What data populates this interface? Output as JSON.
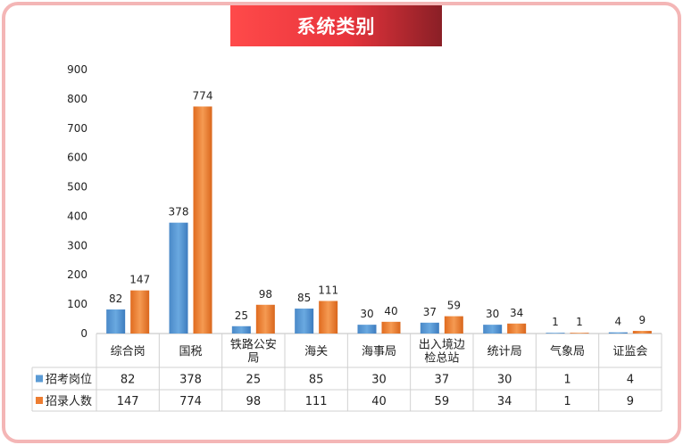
{
  "title": "系统类别",
  "chart_data": {
    "type": "bar",
    "title": "系统类别",
    "categories": [
      [
        "综合岗"
      ],
      [
        "国税"
      ],
      [
        "铁路公安",
        "局"
      ],
      [
        "海关"
      ],
      [
        "海事局"
      ],
      [
        "出入境边",
        "检总站"
      ],
      [
        "统计局"
      ],
      [
        "气象局"
      ],
      [
        "证监会"
      ]
    ],
    "series": [
      {
        "name": "招考岗位",
        "color": "#5b9bd5",
        "values": [
          82,
          378,
          25,
          85,
          30,
          37,
          30,
          1,
          4
        ]
      },
      {
        "name": "招录人数",
        "color": "#ed7d31",
        "values": [
          147,
          774,
          98,
          111,
          40,
          59,
          34,
          1,
          9
        ]
      }
    ],
    "ylim": [
      0,
      900
    ],
    "yticks": [
      0,
      100,
      200,
      300,
      400,
      500,
      600,
      700,
      800,
      900
    ],
    "grid": false,
    "legend": "data-table-left"
  },
  "colors": {
    "accent": "#e8343c",
    "border": "#f4b6b6"
  }
}
